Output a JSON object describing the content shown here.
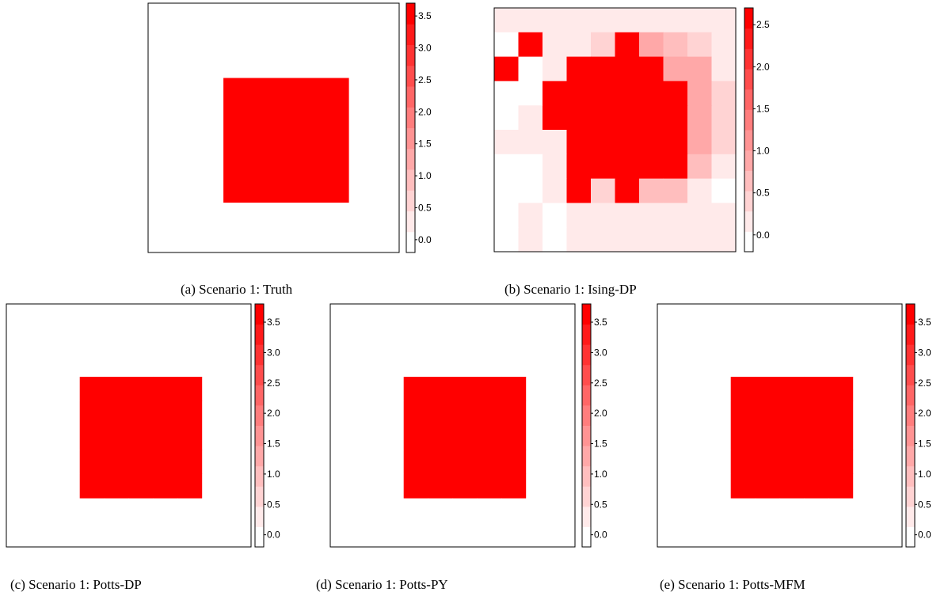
{
  "colors": {
    "scale": [
      "#ffffff",
      "#ffeaea",
      "#ffd3d3",
      "#ffbebe",
      "#ffa8a8",
      "#ff9393",
      "#ff7d7d",
      "#ff6666",
      "#ff4d4d",
      "#ff3333",
      "#ff1a1a",
      "#ff0000"
    ],
    "cell_fill": "#ff0000",
    "border": "#000000"
  },
  "chart_data": [
    {
      "type": "heatmap",
      "caption": "(a) Scenario 1: Truth",
      "grid": [
        10,
        10
      ],
      "vmin": -0.2,
      "vmax": 3.7,
      "values": [
        [
          0,
          0,
          0,
          0,
          0,
          0,
          0,
          0,
          0,
          0
        ],
        [
          0,
          0,
          0,
          0,
          0,
          0,
          0,
          0,
          0,
          0
        ],
        [
          0,
          0,
          0,
          0,
          0,
          0,
          0,
          0,
          0,
          0
        ],
        [
          0,
          0,
          0,
          3.7,
          3.7,
          3.7,
          3.7,
          3.7,
          0,
          0
        ],
        [
          0,
          0,
          0,
          3.7,
          3.7,
          3.7,
          3.7,
          3.7,
          0,
          0
        ],
        [
          0,
          0,
          0,
          3.7,
          3.7,
          3.7,
          3.7,
          3.7,
          0,
          0
        ],
        [
          0,
          0,
          0,
          3.7,
          3.7,
          3.7,
          3.7,
          3.7,
          0,
          0
        ],
        [
          0,
          0,
          0,
          3.7,
          3.7,
          3.7,
          3.7,
          3.7,
          0,
          0
        ],
        [
          0,
          0,
          0,
          0,
          0,
          0,
          0,
          0,
          0,
          0
        ],
        [
          0,
          0,
          0,
          0,
          0,
          0,
          0,
          0,
          0,
          0
        ]
      ],
      "colorbar_ticks": [
        "0.0",
        "0.5",
        "1.0",
        "1.5",
        "2.0",
        "2.5",
        "3.0",
        "3.5"
      ],
      "colorbar_tick_values": [
        0,
        0.5,
        1,
        1.5,
        2,
        2.5,
        3,
        3.5
      ]
    },
    {
      "type": "heatmap",
      "caption": "(b) Scenario 1: Ising-DP",
      "grid": [
        10,
        10
      ],
      "vmin": -0.2,
      "vmax": 2.7,
      "values": [
        [
          0.15,
          0.15,
          0.15,
          0.15,
          0.15,
          0.15,
          0.15,
          0.15,
          0.15,
          0.15
        ],
        [
          0,
          2.7,
          0.15,
          0.15,
          0.5,
          2.7,
          0.8,
          0.6,
          0.5,
          0.15
        ],
        [
          2.7,
          0,
          0.15,
          2.7,
          2.7,
          2.7,
          2.7,
          0.8,
          0.8,
          0.15
        ],
        [
          0,
          0,
          2.7,
          2.7,
          2.7,
          2.7,
          2.7,
          2.7,
          0.8,
          0.5
        ],
        [
          0,
          0.15,
          2.7,
          2.7,
          2.7,
          2.7,
          2.7,
          2.7,
          0.8,
          0.5
        ],
        [
          0.15,
          0.15,
          0.15,
          2.7,
          2.7,
          2.7,
          2.7,
          2.7,
          0.8,
          0.5
        ],
        [
          0,
          0,
          0.15,
          2.7,
          2.7,
          2.7,
          2.7,
          2.7,
          0.6,
          0.15
        ],
        [
          0,
          0,
          0.15,
          2.7,
          0.5,
          2.7,
          0.6,
          0.6,
          0.15,
          0
        ],
        [
          0,
          0.15,
          0,
          0.15,
          0.15,
          0.15,
          0.15,
          0.15,
          0.15,
          0.15
        ],
        [
          0,
          0.15,
          0,
          0.15,
          0.15,
          0.15,
          0.15,
          0.15,
          0.15,
          0.15
        ]
      ],
      "colorbar_ticks": [
        "0.0",
        "0.5",
        "1.0",
        "1.5",
        "2.0",
        "2.5"
      ],
      "colorbar_tick_values": [
        0,
        0.5,
        1,
        1.5,
        2,
        2.5
      ]
    },
    {
      "type": "heatmap",
      "caption": "(c) Scenario 1: Potts-DP",
      "grid": [
        10,
        10
      ],
      "vmin": -0.2,
      "vmax": 3.8,
      "values": [
        [
          0,
          0,
          0,
          0,
          0,
          0,
          0,
          0,
          0,
          0
        ],
        [
          0,
          0,
          0,
          0,
          0,
          0,
          0,
          0,
          0,
          0
        ],
        [
          0,
          0,
          0,
          0,
          0,
          0,
          0,
          0,
          0,
          0
        ],
        [
          0,
          0,
          0,
          3.8,
          3.8,
          3.8,
          3.8,
          3.8,
          0,
          0
        ],
        [
          0,
          0,
          0,
          3.8,
          3.8,
          3.8,
          3.8,
          3.8,
          0,
          0
        ],
        [
          0,
          0,
          0,
          3.8,
          3.8,
          3.8,
          3.8,
          3.8,
          0,
          0
        ],
        [
          0,
          0,
          0,
          3.8,
          3.8,
          3.8,
          3.8,
          3.8,
          0,
          0
        ],
        [
          0,
          0,
          0,
          3.8,
          3.8,
          3.8,
          3.8,
          3.8,
          0,
          0
        ],
        [
          0,
          0,
          0,
          0,
          0,
          0,
          0,
          0,
          0,
          0
        ],
        [
          0,
          0,
          0,
          0,
          0,
          0,
          0,
          0,
          0,
          0
        ]
      ],
      "colorbar_ticks": [
        "0.0",
        "0.5",
        "1.0",
        "1.5",
        "2.0",
        "2.5",
        "3.0",
        "3.5"
      ],
      "colorbar_tick_values": [
        0,
        0.5,
        1,
        1.5,
        2,
        2.5,
        3,
        3.5
      ]
    },
    {
      "type": "heatmap",
      "caption": "(d) Scenario 1: Potts-PY",
      "grid": [
        10,
        10
      ],
      "vmin": -0.2,
      "vmax": 3.8,
      "values": [
        [
          0,
          0,
          0,
          0,
          0,
          0,
          0,
          0,
          0,
          0
        ],
        [
          0,
          0,
          0,
          0,
          0,
          0,
          0,
          0,
          0,
          0
        ],
        [
          0,
          0,
          0,
          0,
          0,
          0,
          0,
          0,
          0,
          0
        ],
        [
          0,
          0,
          0,
          3.8,
          3.8,
          3.8,
          3.8,
          3.8,
          0,
          0
        ],
        [
          0,
          0,
          0,
          3.8,
          3.8,
          3.8,
          3.8,
          3.8,
          0,
          0
        ],
        [
          0,
          0,
          0,
          3.8,
          3.8,
          3.8,
          3.8,
          3.8,
          0,
          0
        ],
        [
          0,
          0,
          0,
          3.8,
          3.8,
          3.8,
          3.8,
          3.8,
          0,
          0
        ],
        [
          0,
          0,
          0,
          3.8,
          3.8,
          3.8,
          3.8,
          3.8,
          0,
          0
        ],
        [
          0,
          0,
          0,
          0,
          0,
          0,
          0,
          0,
          0,
          0
        ],
        [
          0,
          0,
          0,
          0,
          0,
          0,
          0,
          0,
          0,
          0
        ]
      ],
      "colorbar_ticks": [
        "0.0",
        "0.5",
        "1.0",
        "1.5",
        "2.0",
        "2.5",
        "3.0",
        "3.5"
      ],
      "colorbar_tick_values": [
        0,
        0.5,
        1,
        1.5,
        2,
        2.5,
        3,
        3.5
      ]
    },
    {
      "type": "heatmap",
      "caption": "(e) Scenario 1: Potts-MFM",
      "grid": [
        10,
        10
      ],
      "vmin": -0.2,
      "vmax": 3.8,
      "values": [
        [
          0,
          0,
          0,
          0,
          0,
          0,
          0,
          0,
          0,
          0
        ],
        [
          0,
          0,
          0,
          0,
          0,
          0,
          0,
          0,
          0,
          0
        ],
        [
          0,
          0,
          0,
          0,
          0,
          0,
          0,
          0,
          0,
          0
        ],
        [
          0,
          0,
          0,
          3.8,
          3.8,
          3.8,
          3.8,
          3.8,
          0,
          0
        ],
        [
          0,
          0,
          0,
          3.8,
          3.8,
          3.8,
          3.8,
          3.8,
          0,
          0
        ],
        [
          0,
          0,
          0,
          3.8,
          3.8,
          3.8,
          3.8,
          3.8,
          0,
          0
        ],
        [
          0,
          0,
          0,
          3.8,
          3.8,
          3.8,
          3.8,
          3.8,
          0,
          0
        ],
        [
          0,
          0,
          0,
          3.8,
          3.8,
          3.8,
          3.8,
          3.8,
          0,
          0
        ],
        [
          0,
          0,
          0,
          0,
          0,
          0,
          0,
          0,
          0,
          0
        ],
        [
          0,
          0,
          0,
          0,
          0,
          0,
          0,
          0,
          0,
          0
        ]
      ],
      "colorbar_ticks": [
        "0.0",
        "0.5",
        "1.0",
        "1.5",
        "2.0",
        "2.5",
        "3.0",
        "3.5"
      ],
      "colorbar_tick_values": [
        0,
        0.5,
        1,
        1.5,
        2,
        2.5,
        3,
        3.5
      ]
    }
  ]
}
